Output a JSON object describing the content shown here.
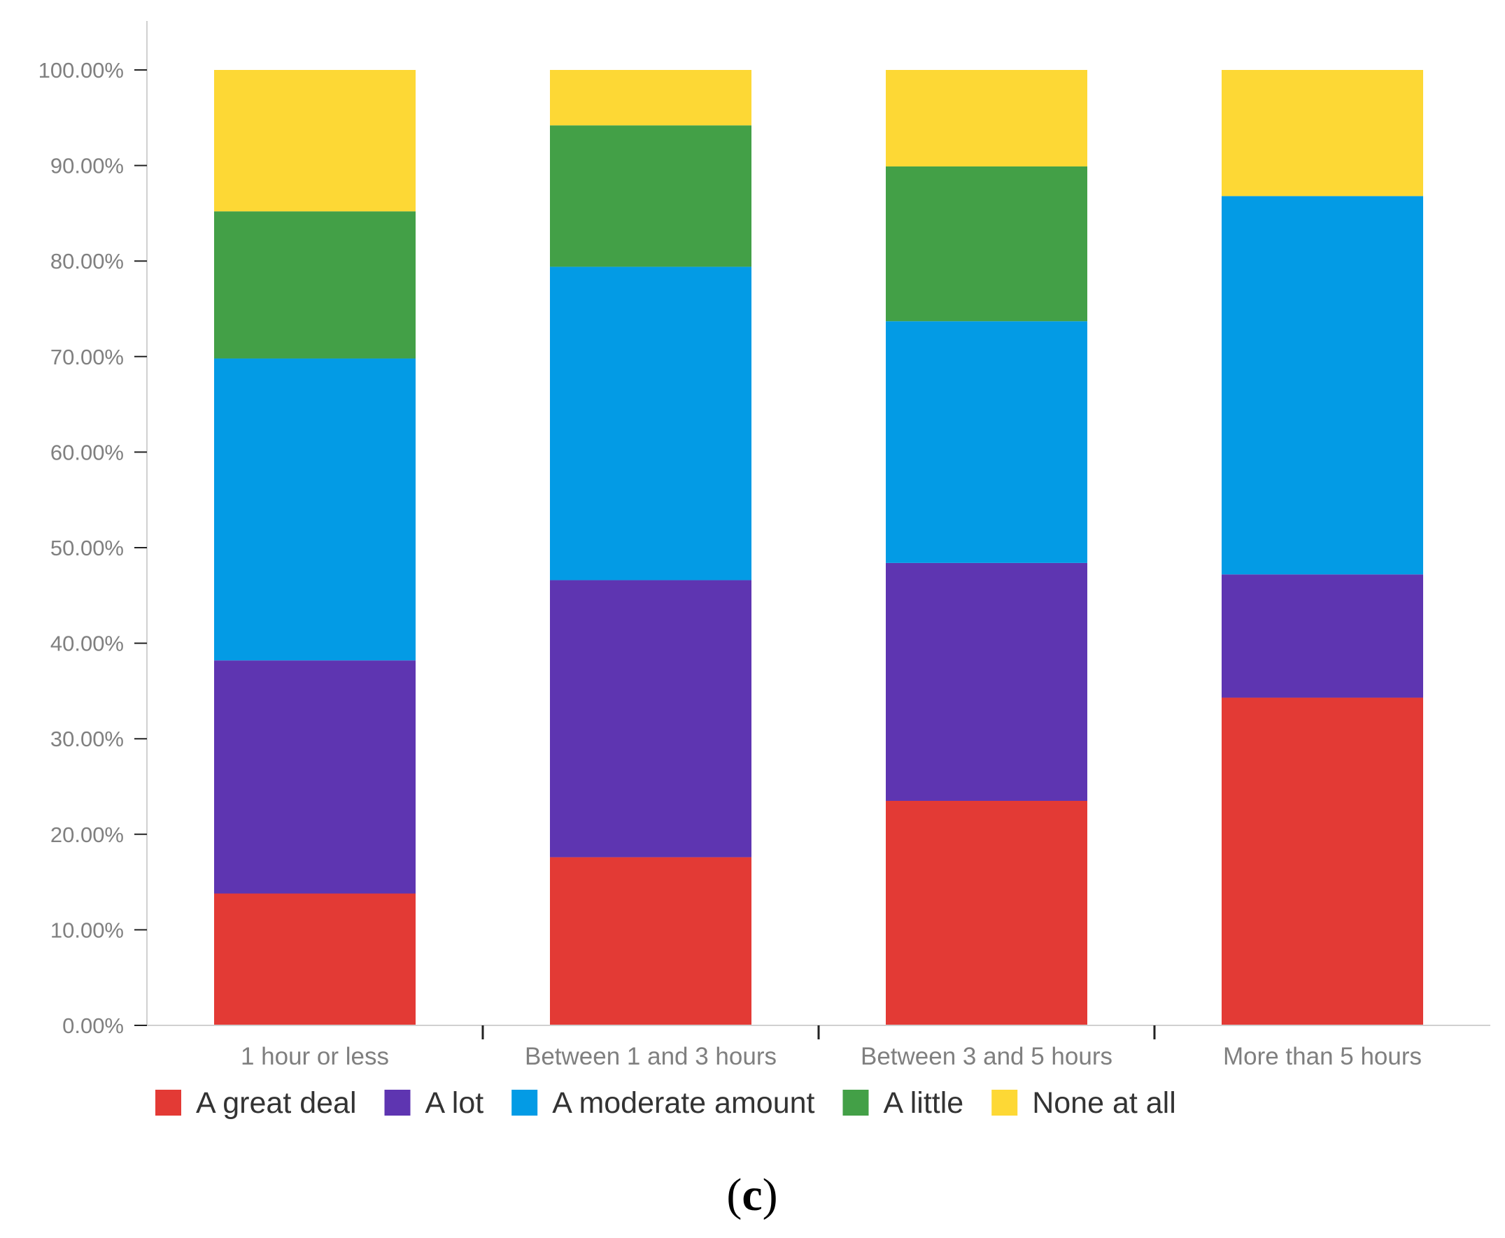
{
  "chart_data": {
    "type": "bar",
    "stacked": true,
    "title": "",
    "xlabel": "",
    "ylabel": "",
    "ylim": [
      0,
      100
    ],
    "y_ticks": [
      "0.00%",
      "10.00%",
      "20.00%",
      "30.00%",
      "40.00%",
      "50.00%",
      "60.00%",
      "70.00%",
      "80.00%",
      "90.00%",
      "100.00%"
    ],
    "categories": [
      "1 hour or less",
      "Between 1 and 3 hours",
      "Between 3 and 5 hours",
      "More than 5 hours"
    ],
    "series": [
      {
        "name": "A great deal",
        "color": "#e33a35",
        "values": [
          13.8,
          17.6,
          23.5,
          34.3
        ]
      },
      {
        "name": "A lot",
        "color": "#5e35b1",
        "values": [
          24.4,
          29.0,
          24.9,
          12.9
        ]
      },
      {
        "name": "A moderate amount",
        "color": "#039be5",
        "values": [
          31.6,
          32.8,
          25.3,
          39.6
        ]
      },
      {
        "name": "A little",
        "color": "#43a047",
        "values": [
          15.4,
          14.8,
          16.2,
          0.0
        ]
      },
      {
        "name": "None at all",
        "color": "#fdd835",
        "values": [
          14.8,
          5.8,
          10.1,
          13.2
        ]
      }
    ],
    "legend_position": "bottom",
    "grid": false
  },
  "caption": {
    "open": "(",
    "letter": "c",
    "close": ")"
  },
  "colors": {
    "axis": "#d0d0d0",
    "tick_text": "#808080"
  }
}
